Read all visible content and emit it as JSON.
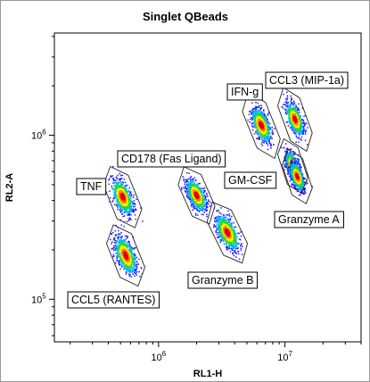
{
  "chart_data": {
    "type": "scatter",
    "title": "Singlet QBeads",
    "xlabel": "RL1-H",
    "ylabel": "RL2-A",
    "xscale": "log",
    "yscale": "log",
    "xlim": [
      150000,
      40000000
    ],
    "ylim": [
      55000,
      4200000
    ],
    "xticks": [
      {
        "value": 1000000,
        "base": "10",
        "exp": "6"
      },
      {
        "value": 10000000,
        "base": "10",
        "exp": "7"
      }
    ],
    "yticks": [
      {
        "value": 100000,
        "base": "10",
        "exp": "5"
      },
      {
        "value": 1000000,
        "base": "10",
        "exp": "6"
      }
    ],
    "density_colors": [
      "#1a1aff",
      "#00b4ff",
      "#22dd22",
      "#ffee00",
      "#ff7a00",
      "#e00000"
    ],
    "populations": [
      {
        "name": "TNF",
        "x": 520000,
        "y": 420000
      },
      {
        "name": "CCL5 (RANTES)",
        "x": 550000,
        "y": 185000
      },
      {
        "name": "CD178 (Fas Ligand)",
        "x": 2000000,
        "y": 430000
      },
      {
        "name": "Granzyme B",
        "x": 3500000,
        "y": 255000
      },
      {
        "name": "IFN-g",
        "x": 6500000,
        "y": 1150000
      },
      {
        "name": "CCL3 (MIP-1a)",
        "x": 12000000,
        "y": 1250000
      },
      {
        "name": "GM-CSF",
        "x": 11500000,
        "y": 650000
      },
      {
        "name": "Granzyme A",
        "x": 12500000,
        "y": 560000
      }
    ]
  }
}
